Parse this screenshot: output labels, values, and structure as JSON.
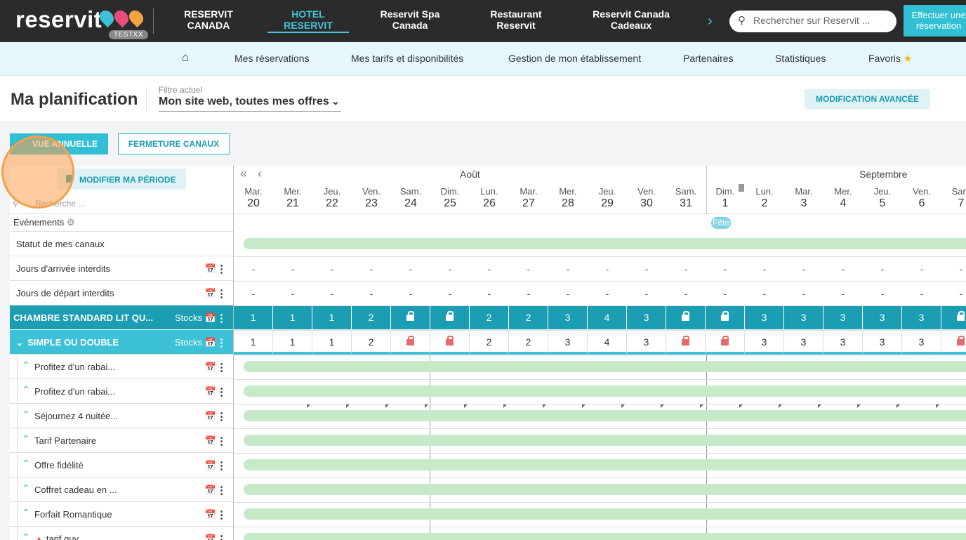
{
  "brand": {
    "logo_text": "reservit",
    "env_badge": "TESTXX"
  },
  "top_nav": [
    {
      "label": "RESERVIT\nCANADA",
      "active": false
    },
    {
      "label": "HOTEL\nRESERVIT",
      "active": true
    },
    {
      "label": "Reservit Spa\nCanada",
      "active": false
    },
    {
      "label": "Restaurant\nReservit",
      "active": false
    },
    {
      "label": "Reservit Canada\nCadeaux",
      "active": false
    }
  ],
  "search": {
    "placeholder": "Rechercher sur Reservit ..."
  },
  "cta": {
    "label": "Effectuer une réservation"
  },
  "sub_nav": {
    "items": [
      "Mes réservations",
      "Mes tarifs et disponibilités",
      "Gestion de mon établissement",
      "Partenaires",
      "Statistiques",
      "Favoris"
    ]
  },
  "page": {
    "title": "Ma planification",
    "filter_label": "Filtre actuel",
    "filter_value": "Mon site web, toutes mes offres",
    "advanced_button": "MODIFICATION AVANCÉE"
  },
  "actions": {
    "annual_view": "VUE ANNUELLE",
    "close_channels": "FERMETURE CANAUX"
  },
  "grid": {
    "modify_period": "MODIFIER MA PÉRIODE",
    "search_placeholder": "Recherche ...",
    "events_label": "Evénements",
    "months": [
      "Août",
      "Septembre"
    ],
    "days": [
      {
        "dow": "Mar.",
        "d": "20"
      },
      {
        "dow": "Mer.",
        "d": "21"
      },
      {
        "dow": "Jeu.",
        "d": "22"
      },
      {
        "dow": "Ven.",
        "d": "23"
      },
      {
        "dow": "Sam.",
        "d": "24"
      },
      {
        "dow": "Dim.",
        "d": "25"
      },
      {
        "dow": "Lun.",
        "d": "26"
      },
      {
        "dow": "Mar.",
        "d": "27"
      },
      {
        "dow": "Mer.",
        "d": "28"
      },
      {
        "dow": "Jeu.",
        "d": "29"
      },
      {
        "dow": "Ven.",
        "d": "30"
      },
      {
        "dow": "Sam.",
        "d": "31"
      },
      {
        "dow": "Dim.",
        "d": "1"
      },
      {
        "dow": "Lun.",
        "d": "2"
      },
      {
        "dow": "Mar.",
        "d": "3"
      },
      {
        "dow": "Mer.",
        "d": "4"
      },
      {
        "dow": "Jeu.",
        "d": "5"
      },
      {
        "dow": "Ven.",
        "d": "6"
      },
      {
        "dow": "Sam",
        "d": "7"
      }
    ],
    "event_pill": "Fête",
    "rows": {
      "channels": "Statut de mes canaux",
      "no_arrival": "Jours d'arrivée interdits",
      "no_departure": "Jours de départ interdits",
      "room": "CHAMBRE STANDARD LIT QU...",
      "room_sub": "SIMPLE OU DOUBLE",
      "stocks_label": "Stocks"
    },
    "room_stock": [
      "1",
      "1",
      "1",
      "2",
      "lock",
      "lock",
      "2",
      "2",
      "3",
      "4",
      "3",
      "lock",
      "lock",
      "3",
      "3",
      "3",
      "3",
      "3",
      "lock"
    ],
    "offers": [
      "Profitez d'un rabai...",
      "Profitez d'un rabai...",
      "Séjournez 4 nuitée...",
      "Tarif Partenaire",
      "Offre fidélité",
      "Coffret cadeau en ...",
      "Forfait Romantique",
      "tarif guy"
    ]
  },
  "colors": {
    "accent": "#30bfd3",
    "room_header": "#1b9db3",
    "available": "#c6e9c8",
    "locked": "#e86a6a"
  }
}
